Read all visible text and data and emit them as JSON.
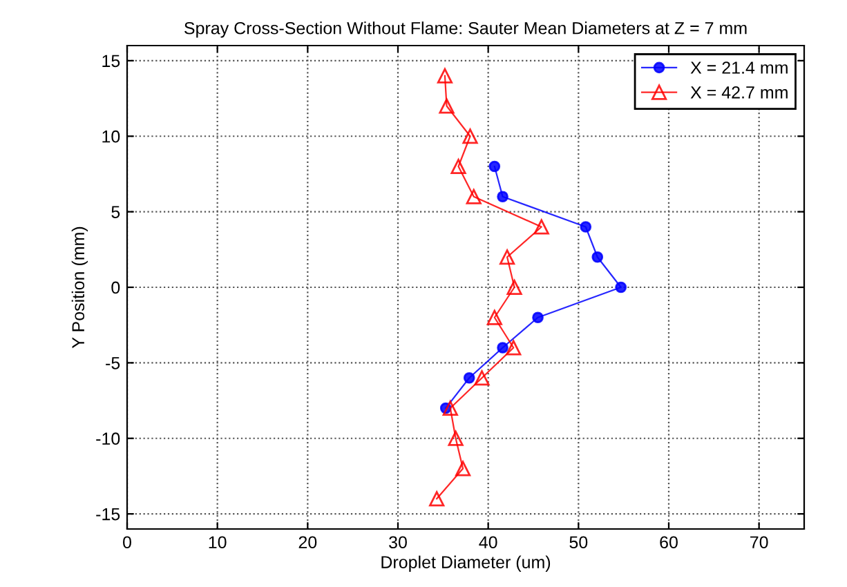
{
  "chart_data": {
    "type": "line",
    "title": "Spray Cross-Section Without Flame: Sauter Mean Diameters at Z = 7 mm",
    "xlabel": "Droplet Diameter (um)",
    "ylabel": "Y Position (mm)",
    "xlim": [
      0,
      75
    ],
    "xticks": [
      0,
      10,
      20,
      30,
      40,
      50,
      60,
      70
    ],
    "ylim": [
      -16,
      16
    ],
    "yticks": [
      -15,
      -10,
      -5,
      0,
      5,
      10,
      15
    ],
    "grid": true,
    "legend": "top right",
    "series": [
      {
        "name": "X = 21.4 mm",
        "color": "#0000ff",
        "marker": "circle",
        "x": [
          40.7,
          41.6,
          50.8,
          52.1,
          54.7,
          45.5,
          41.6,
          37.9,
          35.3
        ],
        "values": [
          8,
          6,
          4,
          2,
          0,
          -2,
          -4,
          -6,
          -8
        ]
      },
      {
        "name": "X = 42.7 mm",
        "color": "#ff0000",
        "marker": "triangle",
        "x": [
          35.2,
          35.4,
          38.0,
          36.7,
          38.4,
          45.9,
          42.1,
          42.9,
          40.7,
          42.8,
          39.3,
          35.8,
          36.4,
          37.2,
          34.3
        ],
        "values": [
          14,
          12,
          10,
          8,
          6,
          4,
          2,
          0,
          -2,
          -4,
          -6,
          -8,
          -10,
          -12,
          -14
        ]
      }
    ]
  }
}
